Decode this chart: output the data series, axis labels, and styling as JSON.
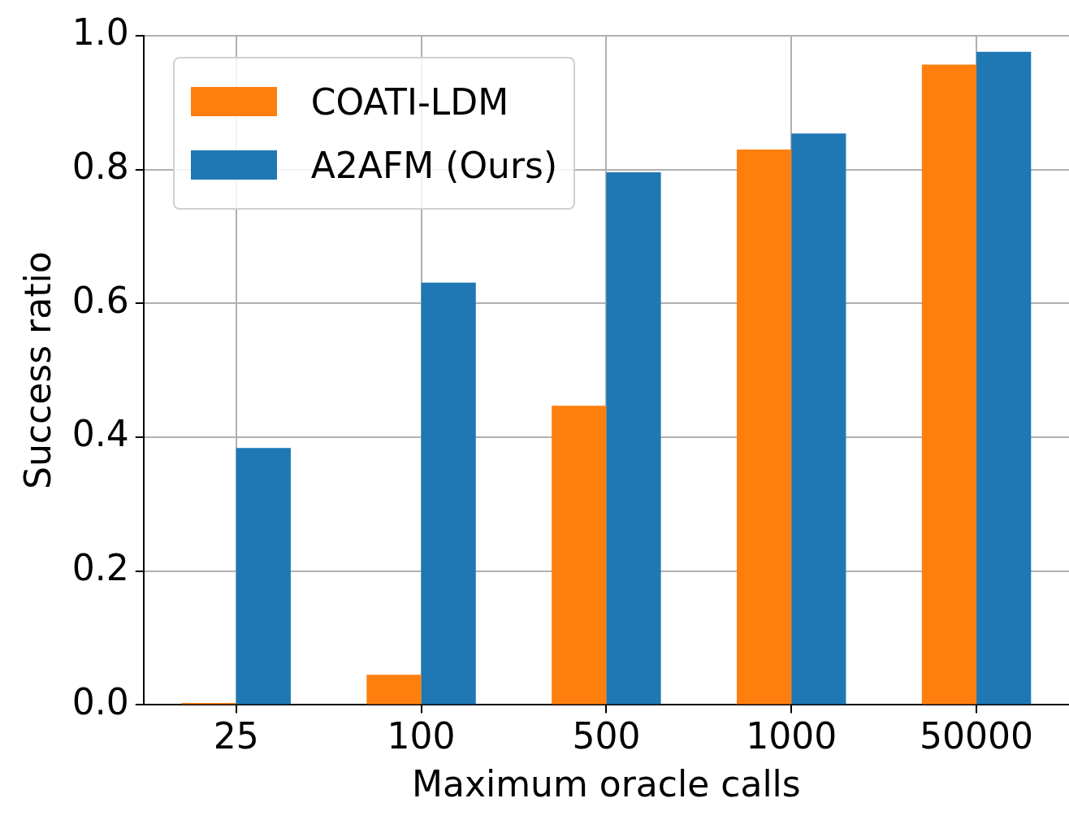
{
  "chart_data": {
    "type": "bar",
    "xlabel": "Maximum oracle calls",
    "ylabel": "Success ratio",
    "categories": [
      "25",
      "100",
      "500",
      "1000",
      "50000"
    ],
    "series": [
      {
        "name": "COATI-LDM",
        "color": "#ff7f0e",
        "values": [
          0.003,
          0.045,
          0.447,
          0.83,
          0.957
        ]
      },
      {
        "name": "A2AFM (Ours)",
        "color": "#1f77b4",
        "values": [
          0.384,
          0.631,
          0.796,
          0.854,
          0.976
        ]
      }
    ],
    "ylim": [
      0,
      1
    ],
    "yticks": [
      {
        "value": 0,
        "label": "0.0"
      },
      {
        "value": 0.2,
        "label": "0.2"
      },
      {
        "value": 0.4,
        "label": "0.4"
      },
      {
        "value": 0.6,
        "label": "0.6"
      },
      {
        "value": 0.8,
        "label": "0.8"
      },
      {
        "value": 1,
        "label": "1.0"
      }
    ],
    "grid": true,
    "legend": "top left"
  }
}
